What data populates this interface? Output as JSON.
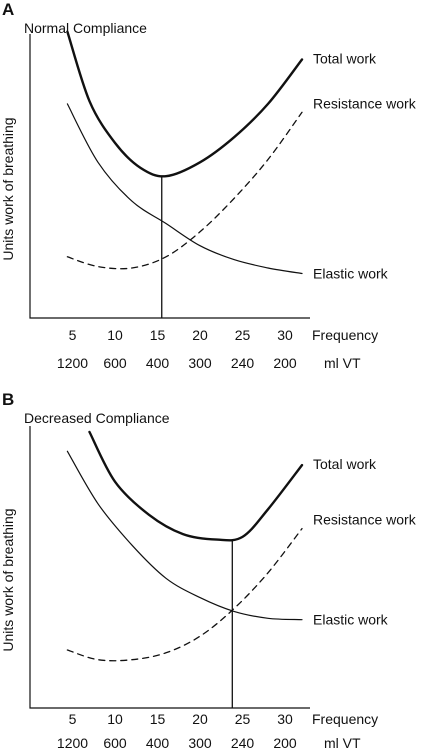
{
  "chart_data": [
    {
      "type": "line",
      "panel": "A",
      "title": "Normal Compliance",
      "ylabel": "Units work of breathing",
      "x_axis_label": "Frequency",
      "secondary_axis_label": "ml VT",
      "x_ticks": [
        5,
        10,
        15,
        20,
        25,
        30
      ],
      "secondary_ticks": [
        "1200",
        "600",
        "400",
        "300",
        "240",
        "200"
      ],
      "xlim": [
        0,
        35
      ],
      "ylim": [
        0,
        10
      ],
      "series": [
        {
          "name": "Total work",
          "style": "bold",
          "points": [
            [
              4.4,
              10.3
            ],
            [
              7,
              7.8
            ],
            [
              10,
              6.3
            ],
            [
              13,
              5.4
            ],
            [
              16,
              5.1
            ],
            [
              20,
              5.6
            ],
            [
              24,
              6.5
            ],
            [
              28,
              7.7
            ],
            [
              32,
              9.3
            ]
          ]
        },
        {
          "name": "Resistance work",
          "style": "dashed",
          "points": [
            [
              4.4,
              2.2
            ],
            [
              8,
              1.85
            ],
            [
              12,
              1.8
            ],
            [
              16,
              2.2
            ],
            [
              20,
              3.1
            ],
            [
              24,
              4.3
            ],
            [
              28,
              5.7
            ],
            [
              32,
              7.4
            ]
          ]
        },
        {
          "name": "Elastic work",
          "style": "thin",
          "points": [
            [
              4.4,
              7.7
            ],
            [
              8,
              5.6
            ],
            [
              12,
              4.2
            ],
            [
              16,
              3.4
            ],
            [
              20,
              2.6
            ],
            [
              24,
              2.1
            ],
            [
              28,
              1.8
            ],
            [
              32,
              1.6
            ]
          ]
        }
      ],
      "marker_x": 15.5,
      "marker_y": 5.1
    },
    {
      "type": "line",
      "panel": "B",
      "title": "Decreased Compliance",
      "ylabel": "Units work of breathing",
      "x_axis_label": "Frequency",
      "secondary_axis_label": "ml VT",
      "x_ticks": [
        5,
        10,
        15,
        20,
        25,
        30
      ],
      "secondary_ticks": [
        "1200",
        "600",
        "400",
        "300",
        "240",
        "200"
      ],
      "xlim": [
        0,
        35
      ],
      "ylim": [
        0,
        10
      ],
      "series": [
        {
          "name": "Total work",
          "style": "bold",
          "points": [
            [
              7,
              10
            ],
            [
              10,
              8.2
            ],
            [
              14,
              7
            ],
            [
              18,
              6.3
            ],
            [
              22,
              6.1
            ],
            [
              25,
              6.2
            ],
            [
              28,
              7.2
            ],
            [
              32,
              8.8
            ]
          ]
        },
        {
          "name": "Resistance work",
          "style": "dashed",
          "points": [
            [
              4.4,
              2.1
            ],
            [
              8,
              1.75
            ],
            [
              12,
              1.75
            ],
            [
              16,
              2.0
            ],
            [
              20,
              2.6
            ],
            [
              24,
              3.6
            ],
            [
              28,
              4.9
            ],
            [
              32,
              6.5
            ]
          ]
        },
        {
          "name": "Elastic work",
          "style": "thin",
          "points": [
            [
              4.4,
              9.3
            ],
            [
              8,
              7.4
            ],
            [
              12,
              5.9
            ],
            [
              16,
              4.7
            ],
            [
              20,
              4.0
            ],
            [
              24,
              3.5
            ],
            [
              28,
              3.25
            ],
            [
              32,
              3.2
            ]
          ]
        }
      ],
      "marker_x": 23.8,
      "marker_y": 6.1
    }
  ]
}
